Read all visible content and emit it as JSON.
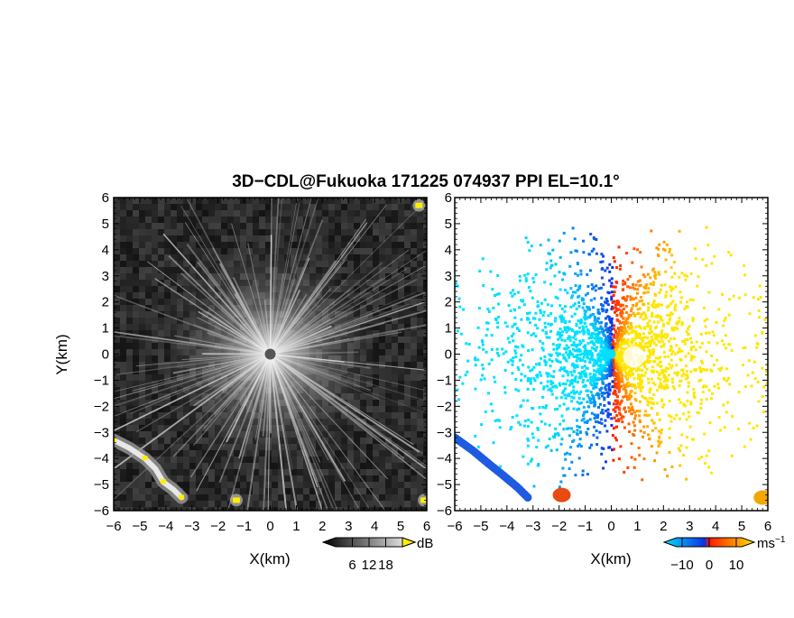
{
  "chart_data": [
    {
      "type": "heatmap",
      "panel": "reflectivity",
      "title": "3D−CDL@Fukuoka 171225 074937 PPI EL=10.1°",
      "xlabel": "X(km)",
      "ylabel": "Y(km)",
      "xlim": [
        -6,
        6
      ],
      "ylim": [
        -6,
        6
      ],
      "xticks": [
        "−6",
        "−5",
        "−4",
        "−3",
        "−2",
        "−1",
        "0",
        "1",
        "2",
        "3",
        "4",
        "5",
        "6"
      ],
      "yticks": [
        "−6",
        "−5",
        "−4",
        "−3",
        "−2",
        "−1",
        "0",
        "1",
        "2",
        "3",
        "4",
        "5",
        "6"
      ],
      "colormap": "grayscale",
      "colors": {
        "low": "#000000",
        "high": "#ffffff",
        "extreme": "#ffee00"
      },
      "colorbar": {
        "unit": "dB",
        "ticks": [
          "6",
          "12",
          "18"
        ],
        "range": [
          0,
          24
        ]
      },
      "features": [
        {
          "kind": "radial-beams",
          "center": [
            0,
            0
          ]
        },
        {
          "kind": "strong-echo-band",
          "points": [
            [
              -6,
              -3.3
            ],
            [
              -5.4,
              -3.6
            ],
            [
              -4.8,
              -4.0
            ],
            [
              -4.4,
              -4.4
            ],
            [
              -4.1,
              -4.9
            ],
            [
              -3.7,
              -5.2
            ],
            [
              -3.4,
              -5.5
            ]
          ]
        },
        {
          "kind": "strong-echo-spot",
          "x": -1.3,
          "y": -5.6
        },
        {
          "kind": "strong-echo-spot",
          "x": 5.7,
          "y": 5.7
        },
        {
          "kind": "strong-echo-spot",
          "x": 5.9,
          "y": -5.6
        }
      ]
    },
    {
      "type": "heatmap",
      "panel": "doppler-velocity",
      "xlabel": "X(km)",
      "xlim": [
        -6,
        6
      ],
      "ylim": [
        -6,
        6
      ],
      "xticks": [
        "−6",
        "−5",
        "−4",
        "−3",
        "−2",
        "−1",
        "0",
        "1",
        "2",
        "3",
        "4",
        "5",
        "6"
      ],
      "yticks": [
        "−6",
        "−5",
        "−4",
        "−3",
        "−2",
        "−1",
        "0",
        "1",
        "2",
        "3",
        "4",
        "5",
        "6"
      ],
      "colormap": "cyan-blue-red-yellow",
      "colors": {
        "neg_far": "#00e0ff",
        "neg": "#1030e0",
        "pos": "#ff1a00",
        "pos_far": "#ffe600"
      },
      "colorbar": {
        "unit": "ms",
        "unit_exp": "−1",
        "ticks": [
          "−10",
          "0",
          "10"
        ],
        "range": [
          -12,
          12
        ]
      },
      "features": [
        {
          "kind": "velocity-fan",
          "side": "approaching",
          "sector_deg": [
            110,
            250
          ]
        },
        {
          "kind": "velocity-fan",
          "side": "receding",
          "sector_deg": [
            -70,
            70
          ]
        },
        {
          "kind": "echo-band",
          "points": [
            [
              -6,
              -3.2
            ],
            [
              -5.3,
              -3.7
            ],
            [
              -4.7,
              -4.2
            ],
            [
              -4.2,
              -4.6
            ],
            [
              -3.6,
              -5.1
            ],
            [
              -3.2,
              -5.5
            ]
          ],
          "velocity": -9
        },
        {
          "kind": "echo-blob",
          "x": -1.9,
          "y": -5.4,
          "velocity": 4
        },
        {
          "kind": "echo-blob",
          "x": 5.8,
          "y": -5.5,
          "velocity": 8
        }
      ]
    }
  ]
}
